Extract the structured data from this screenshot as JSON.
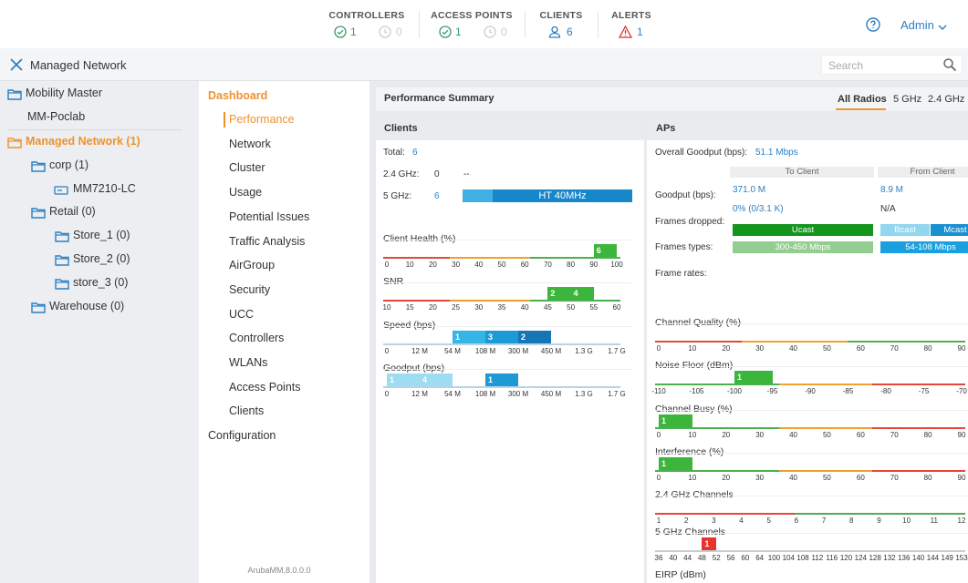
{
  "header": {
    "stats": [
      {
        "label": "CONTROLLERS",
        "up": 1,
        "down": 0
      },
      {
        "label": "ACCESS POINTS",
        "up": 1,
        "down": 0
      },
      {
        "label": "CLIENTS",
        "count": 6
      },
      {
        "label": "ALERTS",
        "count": 1
      }
    ],
    "user": "Admin"
  },
  "toolbar": {
    "title": "Managed Network",
    "search": "Search"
  },
  "tree": [
    "Mobility Master",
    "MM-Poclab",
    "Managed Network (1)",
    "corp (1)",
    "MM7210-LC",
    "Retail (0)",
    "Store_1 (0)",
    "Store_2 (0)",
    "store_3 (0)",
    "Warehouse (0)"
  ],
  "nav": {
    "section": "Dashboard",
    "items": [
      "Performance",
      "Network",
      "Cluster",
      "Usage",
      "Potential Issues",
      "Traffic Analysis",
      "AirGroup",
      "Security",
      "UCC",
      "Controllers",
      "WLANs",
      "Access Points",
      "Clients"
    ],
    "configuration": "Configuration",
    "version": "ArubaMM,8.0.0.0"
  },
  "summary": {
    "title": "Performance Summary",
    "tabs": [
      "All Radios",
      "5 GHz",
      "2.4 GHz"
    ]
  },
  "clients": {
    "title": "Clients",
    "rows": [
      {
        "label": "Total:",
        "value": 6
      },
      {
        "label": "2.4 GHz:",
        "value": 0,
        "extra": "--"
      },
      {
        "label": "5 GHz:",
        "value": 6,
        "bar": "HT 40MHz"
      }
    ],
    "histograms": [
      {
        "title": "Client Health (%)",
        "ticks": [
          0,
          10,
          20,
          30,
          40,
          50,
          60,
          70,
          80,
          90,
          100
        ],
        "bars": [
          {
            "from": 90,
            "to": 100,
            "count": 6,
            "color": "#3cb53c"
          }
        ]
      },
      {
        "title": "SNR",
        "ticks": [
          10,
          15,
          20,
          25,
          30,
          35,
          40,
          45,
          50,
          55,
          60
        ],
        "bars": [
          {
            "from": 45,
            "to": 50,
            "count": 2,
            "color": "#3cb53c"
          },
          {
            "from": 50,
            "to": 55,
            "count": 4,
            "color": "#3cb53c"
          }
        ]
      },
      {
        "title": "Speed (bps)",
        "ticks": [
          "0",
          "12 M",
          "54 M",
          "108 M",
          "300 M",
          "450 M",
          "1.3 G",
          "1.7 G"
        ],
        "bars": [
          {
            "from": "54 M",
            "to": "108 M",
            "count": 1,
            "color": "#33b5e5"
          },
          {
            "from": "108 M",
            "to": "300 M",
            "count": 3,
            "color": "#1b9ad6"
          },
          {
            "from": "300 M",
            "to": "450 M",
            "count": 2,
            "color": "#1575b5"
          }
        ]
      },
      {
        "title": "Goodput (bps)",
        "ticks": [
          "0",
          "12 M",
          "54 M",
          "108 M",
          "300 M",
          "450 M",
          "1.3 G",
          "1.7 G"
        ],
        "bars": [
          {
            "from": "0",
            "to": "12 M",
            "count": 1,
            "color": "#9edcf2"
          },
          {
            "from": "12 M",
            "to": "54 M",
            "count": 4,
            "color": "#9edcf2"
          },
          {
            "from": "108 M",
            "to": "300 M",
            "count": 1,
            "color": "#1b9ad6"
          }
        ]
      }
    ]
  },
  "aps": {
    "title": "APs",
    "overall_label": "Overall Goodput (bps):",
    "overall": "51.1 Mbps",
    "columns": [
      "To Client",
      "From Client"
    ],
    "labels": [
      "Goodput (bps):",
      "Frames dropped:",
      "Frames types:",
      "Frame rates:"
    ],
    "goodput": [
      "371.0 M",
      "8.9 M"
    ],
    "dropped": [
      "0% (0/3.1 K)",
      "N/A"
    ],
    "type_bars": [
      [
        "Ucast"
      ],
      [
        "Bcast",
        "Mcast"
      ]
    ],
    "rate_bars": [
      [
        "300-450 Mbps"
      ],
      [
        "54-108 Mbps"
      ]
    ],
    "histograms": [
      {
        "title": "Channel Quality (%)",
        "ticks": [
          0,
          10,
          20,
          30,
          40,
          50,
          60,
          70,
          80,
          90
        ],
        "bars": []
      },
      {
        "title": "Noise Floor (dBm)",
        "ticks": [
          -110,
          -105,
          -100,
          -95,
          -90,
          -85,
          -80,
          -75,
          -70
        ],
        "bars": [
          {
            "from": -100,
            "to": -95,
            "count": 1,
            "color": "#3cb53c"
          }
        ]
      },
      {
        "title": "Channel Busy (%)",
        "ticks": [
          0,
          10,
          20,
          30,
          40,
          50,
          60,
          70,
          80,
          90
        ],
        "bars": [
          {
            "from": 0,
            "to": 10,
            "count": 1,
            "color": "#3cb53c"
          }
        ]
      },
      {
        "title": "Interference (%)",
        "ticks": [
          0,
          10,
          20,
          30,
          40,
          50,
          60,
          70,
          80,
          90
        ],
        "bars": [
          {
            "from": 0,
            "to": 10,
            "count": 1,
            "color": "#3cb53c"
          }
        ]
      },
      {
        "title": "2.4 GHz Channels",
        "ticks": [
          1,
          2,
          3,
          4,
          5,
          6,
          7,
          8,
          9,
          10,
          11,
          12
        ],
        "bars": []
      },
      {
        "title": "5 GHz Channels",
        "ticks": [
          36,
          40,
          44,
          48,
          52,
          56,
          60,
          64,
          100,
          104,
          108,
          112,
          116,
          120,
          124,
          128,
          132,
          136,
          140,
          144,
          149,
          153
        ],
        "bars": [
          {
            "from": 48,
            "to": 52,
            "count": 1,
            "color": "#e8322b"
          }
        ]
      },
      {
        "title": "EIRP (dBm)",
        "ticks": [],
        "bars": []
      }
    ]
  }
}
